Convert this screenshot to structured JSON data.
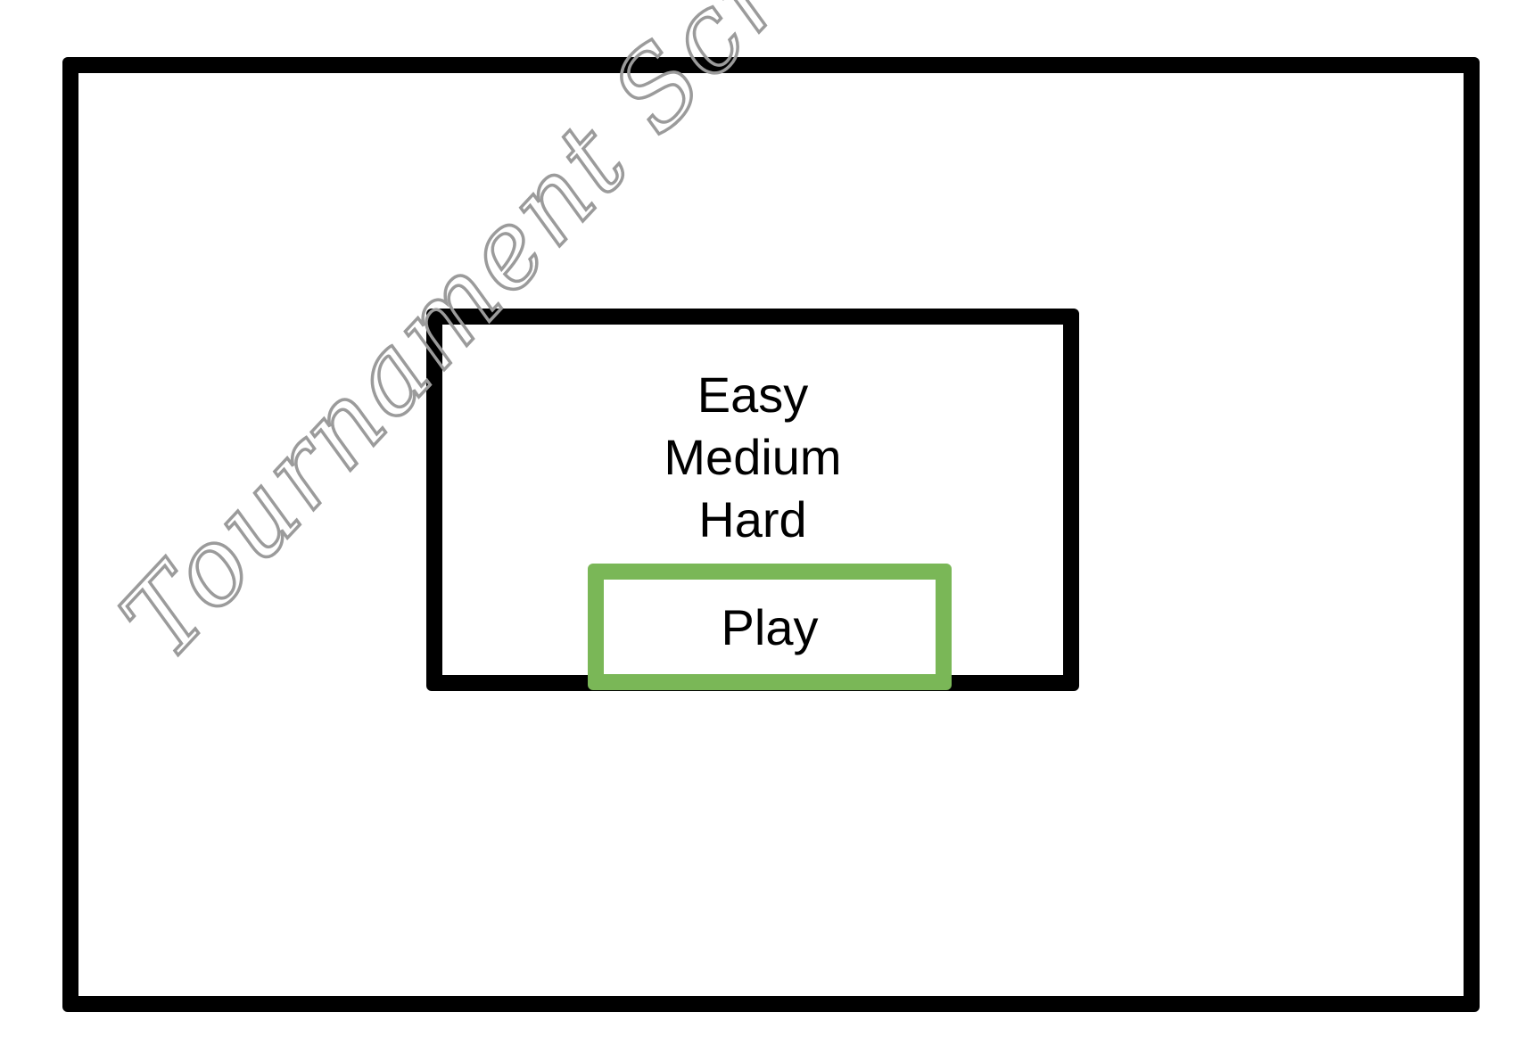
{
  "annotation": {
    "text": "Tournament Screen",
    "color": "#9b9b9b"
  },
  "dialog": {
    "difficulty_options": [
      {
        "label": "Easy"
      },
      {
        "label": "Medium"
      },
      {
        "label": "Hard"
      }
    ],
    "play_label": "Play"
  },
  "colors": {
    "frame": "#000000",
    "play_border": "#7ab757",
    "background": "#ffffff"
  }
}
